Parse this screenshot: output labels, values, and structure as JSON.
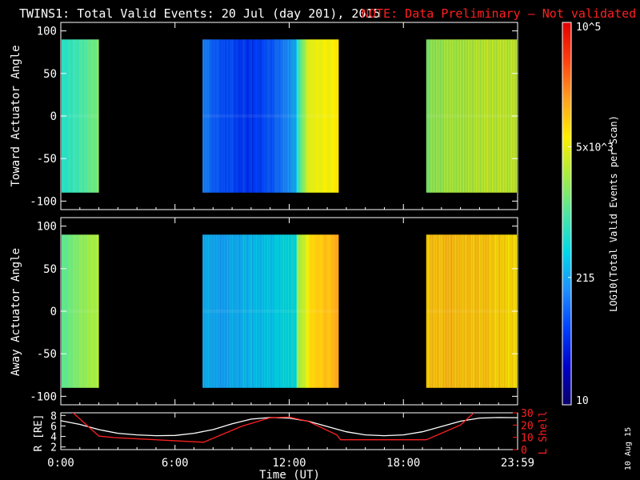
{
  "title": {
    "main": "TWINS1: Total Valid Events: 20 Jul (day 201), 2015",
    "note": "NOTE: Data Preliminary – Not validated",
    "note_color": "#ff2020"
  },
  "stamp": "10 Aug 15",
  "colorbar": {
    "label": "LOG10(Total Valid Events per Scan)",
    "ticks": [
      {
        "label": "10",
        "value": 10
      },
      {
        "label": "215",
        "value": 215
      },
      {
        "label": "5x10^3",
        "value": 5000
      },
      {
        "label": "10^5",
        "value": 100000
      }
    ],
    "stops": [
      "#0a006a",
      "#0000c8",
      "#0040ff",
      "#1e90ff",
      "#00d8e8",
      "#50e6a0",
      "#a8ec40",
      "#ffee00",
      "#ffa020",
      "#ff4010",
      "#e00000"
    ]
  },
  "chart_data": [
    {
      "type": "heatmap",
      "name": "toward",
      "ylabel": "Toward Actuator Angle",
      "xlim": [
        0,
        24
      ],
      "ylim": [
        -110,
        110
      ],
      "y_data_range": [
        -90,
        90
      ],
      "yticks": [
        100,
        50,
        0,
        -50,
        -100
      ],
      "xticks": [
        0,
        6,
        12,
        18,
        24
      ],
      "xtick_labels": [
        "0:00",
        "6:00",
        "12:00",
        "18:00",
        "23:59"
      ],
      "segments": [
        {
          "start_hr": -0.3,
          "end_hr": 2.0,
          "profile": [
            [
              0,
              0.44
            ],
            [
              0.1,
              0.45
            ],
            [
              0.5,
              0.48
            ],
            [
              1,
              0.56
            ]
          ]
        },
        {
          "start_hr": 7.45,
          "end_hr": 12.4,
          "profile": [
            [
              0,
              0.28
            ],
            [
              0.1,
              0.24
            ],
            [
              0.5,
              0.18
            ],
            [
              0.85,
              0.27
            ],
            [
              1,
              0.36
            ]
          ]
        },
        {
          "start_hr": 12.4,
          "end_hr": 13.05,
          "profile": [
            [
              0,
              0.45
            ],
            [
              0.5,
              0.58
            ],
            [
              1,
              0.68
            ]
          ]
        },
        {
          "start_hr": 13.05,
          "end_hr": 14.6,
          "profile": [
            [
              0,
              0.68
            ],
            [
              1,
              0.7
            ]
          ]
        },
        {
          "start_hr": 19.2,
          "end_hr": 24.1,
          "profile": [
            [
              0,
              0.56
            ],
            [
              0.25,
              0.6
            ],
            [
              1,
              0.64
            ]
          ]
        }
      ]
    },
    {
      "type": "heatmap",
      "name": "away",
      "ylabel": "Away Actuator Angle",
      "xlim": [
        0,
        24
      ],
      "ylim": [
        -110,
        110
      ],
      "y_data_range": [
        -90,
        90
      ],
      "yticks": [
        100,
        50,
        0,
        -50,
        -100
      ],
      "xticks": [
        0,
        6,
        12,
        18,
        24
      ],
      "xtick_labels": [
        "0:00",
        "6:00",
        "12:00",
        "18:00",
        "23:59"
      ],
      "segments": [
        {
          "start_hr": -0.3,
          "end_hr": 2.0,
          "profile": [
            [
              0,
              0.5
            ],
            [
              0.5,
              0.56
            ],
            [
              1,
              0.62
            ]
          ]
        },
        {
          "start_hr": 7.45,
          "end_hr": 12.4,
          "profile": [
            [
              0,
              0.34
            ],
            [
              0.2,
              0.33
            ],
            [
              0.5,
              0.36
            ],
            [
              1,
              0.42
            ]
          ]
        },
        {
          "start_hr": 12.4,
          "end_hr": 13.05,
          "profile": [
            [
              0,
              0.58
            ],
            [
              1,
              0.7
            ]
          ]
        },
        {
          "start_hr": 13.05,
          "end_hr": 14.6,
          "profile": [
            [
              0,
              0.74
            ],
            [
              1,
              0.78
            ]
          ]
        },
        {
          "start_hr": 19.2,
          "end_hr": 24.1,
          "profile": [
            [
              0,
              0.74
            ],
            [
              0.3,
              0.76
            ],
            [
              1,
              0.72
            ]
          ]
        }
      ]
    },
    {
      "type": "line",
      "name": "orbit",
      "xlabel": "Time (UT)",
      "xlim": [
        0,
        24
      ],
      "xticks": [
        0,
        6,
        12,
        18,
        24
      ],
      "xtick_labels": [
        "0:00",
        "6:00",
        "12:00",
        "18:00",
        "23:59"
      ],
      "left_axis": {
        "label": "R [RE]",
        "lim": [
          1.5,
          8.5
        ],
        "ticks": [
          8,
          6,
          4,
          2
        ]
      },
      "right_axis": {
        "label": "L Shell",
        "lim": [
          0,
          30
        ],
        "ticks": [
          30,
          20,
          10,
          0
        ],
        "color": "#ff2020"
      },
      "series": [
        {
          "name": "R",
          "color": "#ffffff",
          "axis": "left",
          "x": [
            -0.5,
            0,
            1,
            2,
            3,
            4,
            5,
            6,
            7,
            8,
            9,
            10,
            11,
            12,
            13,
            14,
            15,
            16,
            17,
            18,
            19,
            20,
            21,
            22,
            23,
            24.2
          ],
          "y": [
            7.2,
            7.0,
            6.3,
            5.3,
            4.6,
            4.3,
            4.15,
            4.2,
            4.6,
            5.3,
            6.4,
            7.3,
            7.6,
            7.5,
            6.9,
            5.9,
            4.9,
            4.3,
            4.15,
            4.3,
            4.9,
            5.9,
            6.9,
            7.5,
            7.6,
            7.55
          ]
        },
        {
          "name": "L Shell",
          "color": "#ff2020",
          "axis": "right",
          "x": [
            0.5,
            2.0,
            2.8,
            7.5,
            9.5,
            11.0,
            12.0,
            13.0,
            14.5,
            14.7,
            19.2,
            21.0,
            21.7
          ],
          "y": [
            32,
            11,
            9.8,
            6,
            19,
            26,
            26.5,
            23,
            12,
            8,
            8,
            20,
            30
          ]
        }
      ]
    }
  ]
}
